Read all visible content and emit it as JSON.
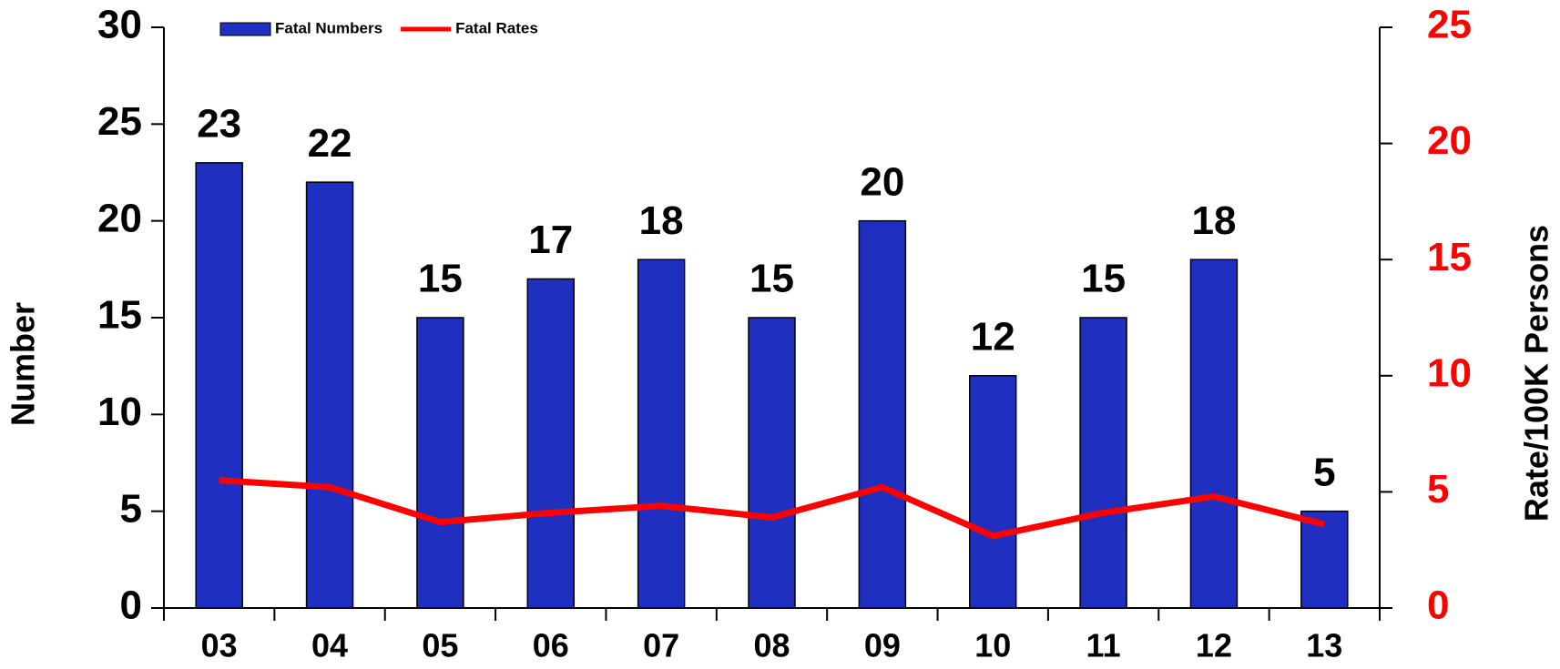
{
  "chart_data": {
    "type": "bar",
    "categories": [
      "03",
      "04",
      "05",
      "06",
      "07",
      "08",
      "09",
      "10",
      "11",
      "12",
      "13"
    ],
    "series": [
      {
        "name": "Fatal Numbers",
        "color": "#1f2fbf",
        "type": "bar",
        "values": [
          23,
          22,
          15,
          17,
          18,
          15,
          20,
          12,
          15,
          18,
          5
        ]
      },
      {
        "name": "Fatal Rates",
        "color": "#ff0000",
        "type": "line",
        "axis": "y2",
        "values": [
          5.5,
          5.2,
          3.7,
          4.1,
          4.4,
          3.9,
          5.2,
          3.1,
          4.1,
          4.8,
          3.6
        ]
      }
    ],
    "ylabel": "Number",
    "y2label": "Rate/100K Persons",
    "ylim": [
      0,
      30
    ],
    "yticks": [
      0,
      5,
      10,
      15,
      20,
      25,
      30
    ],
    "y2lim": [
      0,
      25
    ],
    "y2ticks": [
      0,
      5,
      10,
      15,
      20,
      25
    ],
    "legend": "top-left"
  }
}
